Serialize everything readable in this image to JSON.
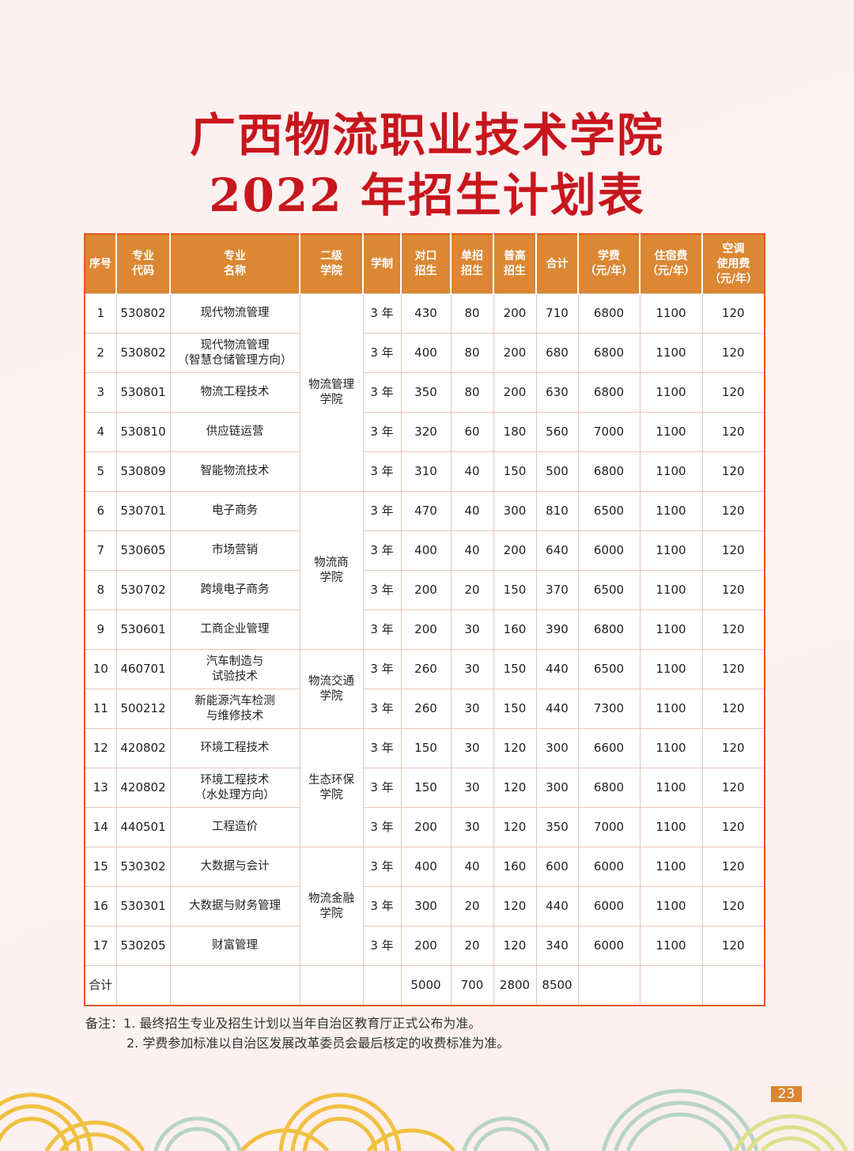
{
  "title": {
    "line1": "广西物流职业技术学院",
    "line2": "2022 年招生计划表"
  },
  "table": {
    "headers": [
      "序号",
      "专业\n代码",
      "专业\n名称",
      "二级\n学院",
      "学制",
      "对口\n招生",
      "单招\n招生",
      "普高\n招生",
      "合计",
      "学费\n（元/年）",
      "住宿费\n（元/年）",
      "空调\n使用费\n（元/年）"
    ],
    "colleges": [
      {
        "name": "物流管理\n学院",
        "rows": 5
      },
      {
        "name": "物流商\n学院",
        "rows": 4
      },
      {
        "name": "物流交通\n学院",
        "rows": 2
      },
      {
        "name": "生态环保\n学院",
        "rows": 3
      },
      {
        "name": "物流金融\n学院",
        "rows": 3
      }
    ],
    "rows": [
      [
        "1",
        "530802",
        "现代物流管理",
        "3 年",
        "430",
        "80",
        "200",
        "710",
        "6800",
        "1100",
        "120"
      ],
      [
        "2",
        "530802",
        "现代物流管理\n（智慧仓储管理方向）",
        "3 年",
        "400",
        "80",
        "200",
        "680",
        "6800",
        "1100",
        "120"
      ],
      [
        "3",
        "530801",
        "物流工程技术",
        "3 年",
        "350",
        "80",
        "200",
        "630",
        "6800",
        "1100",
        "120"
      ],
      [
        "4",
        "530810",
        "供应链运营",
        "3 年",
        "320",
        "60",
        "180",
        "560",
        "7000",
        "1100",
        "120"
      ],
      [
        "5",
        "530809",
        "智能物流技术",
        "3 年",
        "310",
        "40",
        "150",
        "500",
        "6800",
        "1100",
        "120"
      ],
      [
        "6",
        "530701",
        "电子商务",
        "3 年",
        "470",
        "40",
        "300",
        "810",
        "6500",
        "1100",
        "120"
      ],
      [
        "7",
        "530605",
        "市场营销",
        "3 年",
        "400",
        "40",
        "200",
        "640",
        "6000",
        "1100",
        "120"
      ],
      [
        "8",
        "530702",
        "跨境电子商务",
        "3 年",
        "200",
        "20",
        "150",
        "370",
        "6500",
        "1100",
        "120"
      ],
      [
        "9",
        "530601",
        "工商企业管理",
        "3 年",
        "200",
        "30",
        "160",
        "390",
        "6800",
        "1100",
        "120"
      ],
      [
        "10",
        "460701",
        "汽车制造与\n试验技术",
        "3 年",
        "260",
        "30",
        "150",
        "440",
        "6500",
        "1100",
        "120"
      ],
      [
        "11",
        "500212",
        "新能源汽车检测\n与维修技术",
        "3 年",
        "260",
        "30",
        "150",
        "440",
        "7300",
        "1100",
        "120"
      ],
      [
        "12",
        "420802",
        "环境工程技术",
        "3 年",
        "150",
        "30",
        "120",
        "300",
        "6600",
        "1100",
        "120"
      ],
      [
        "13",
        "420802",
        "环境工程技术\n（水处理方向）",
        "3 年",
        "150",
        "30",
        "120",
        "300",
        "6800",
        "1100",
        "120"
      ],
      [
        "14",
        "440501",
        "工程造价",
        "3 年",
        "200",
        "30",
        "120",
        "350",
        "7000",
        "1100",
        "120"
      ],
      [
        "15",
        "530302",
        "大数据与会计",
        "3 年",
        "400",
        "40",
        "160",
        "600",
        "6000",
        "1100",
        "120"
      ],
      [
        "16",
        "530301",
        "大数据与财务管理",
        "3 年",
        "300",
        "20",
        "120",
        "440",
        "6000",
        "1100",
        "120"
      ],
      [
        "17",
        "530205",
        "财富管理",
        "3 年",
        "200",
        "20",
        "120",
        "340",
        "6000",
        "1100",
        "120"
      ]
    ],
    "total": {
      "label": "合计",
      "duikou": "5000",
      "danzhao": "700",
      "pugao": "2800",
      "sum": "8500"
    }
  },
  "notes": {
    "line1": "备注：1. 最终招生专业及招生计划以当年自治区教育厅正式公布为准。",
    "line2": "2. 学费参加标准以自治区发展改革委员会最后核定的收费标准为准。"
  },
  "page_number": "23",
  "colors": {
    "title": "#c8161d",
    "header": "#db8733",
    "border": "#e8571e"
  }
}
